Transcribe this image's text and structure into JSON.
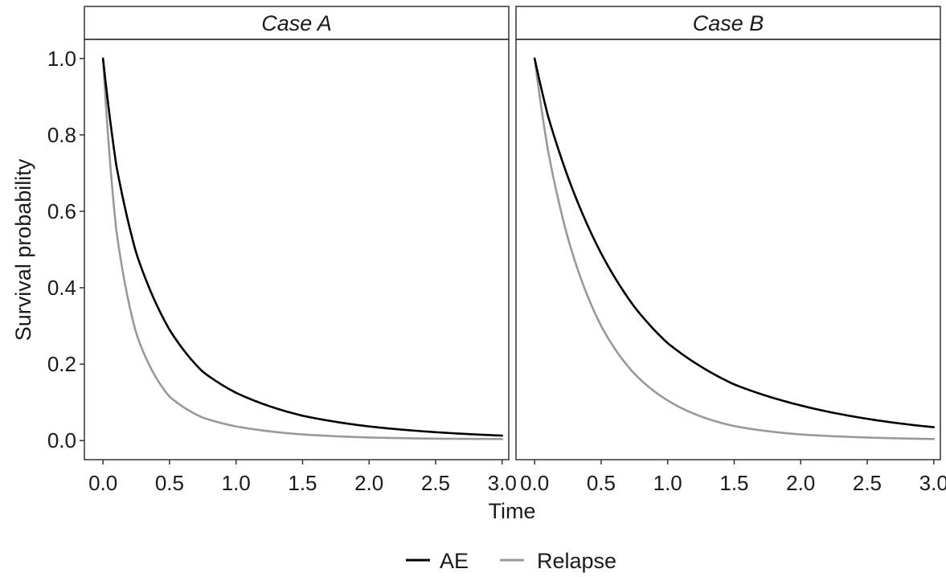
{
  "chart_data": {
    "type": "line",
    "xlabel": "Time",
    "ylabel": "Survival probability",
    "xlim": [
      -0.14,
      3.05
    ],
    "ylim": [
      -0.05,
      1.05
    ],
    "x_ticks": [
      0.0,
      0.5,
      1.0,
      1.5,
      2.0,
      2.5,
      3.0
    ],
    "y_ticks": [
      0.0,
      0.2,
      0.4,
      0.6,
      0.8,
      1.0
    ],
    "x_tick_labels": [
      "0.0",
      "0.5",
      "1.0",
      "1.5",
      "2.0",
      "2.5",
      "3.0"
    ],
    "y_tick_labels": [
      "0.0",
      "0.2",
      "0.4",
      "0.6",
      "0.8",
      "1.0"
    ],
    "grid": false,
    "legend_position": "bottom",
    "legend": [
      {
        "name": "AE",
        "color": "#000000"
      },
      {
        "name": "Relapse",
        "color": "#999999"
      }
    ],
    "panels": [
      {
        "title": "Case A",
        "x": [
          0.0,
          0.1,
          0.25,
          0.5,
          0.75,
          1.0,
          1.5,
          2.0,
          2.5,
          3.0
        ],
        "series": [
          {
            "name": "AE",
            "color": "#000000",
            "values": [
              1.0,
              0.72,
              0.49,
              0.29,
              0.18,
              0.125,
              0.065,
              0.037,
              0.022,
              0.013
            ]
          },
          {
            "name": "Relapse",
            "color": "#999999",
            "values": [
              1.0,
              0.55,
              0.28,
              0.115,
              0.06,
              0.037,
              0.016,
              0.008,
              0.005,
              0.004
            ]
          }
        ]
      },
      {
        "title": "Case B",
        "x": [
          0.0,
          0.1,
          0.25,
          0.5,
          0.75,
          1.0,
          1.5,
          2.0,
          2.5,
          3.0
        ],
        "series": [
          {
            "name": "AE",
            "color": "#000000",
            "values": [
              1.0,
              0.85,
              0.69,
              0.49,
              0.35,
              0.255,
              0.147,
              0.092,
              0.057,
              0.035
            ]
          },
          {
            "name": "Relapse",
            "color": "#999999",
            "values": [
              1.0,
              0.76,
              0.53,
              0.3,
              0.175,
              0.105,
              0.038,
              0.016,
              0.008,
              0.004
            ]
          }
        ]
      }
    ]
  }
}
